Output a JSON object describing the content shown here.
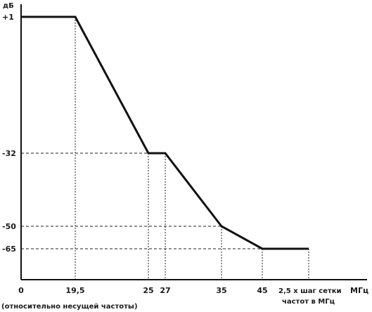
{
  "chart_data": {
    "type": "line",
    "ylabel": "дБ",
    "xlabel": "МГц",
    "x_note": "(относительно несущей частоты)",
    "x_end_label_line1": "2,5 x шаг сетки",
    "x_end_label_line2": "частот в МГц",
    "y_top_label": "+1",
    "series": [
      {
        "x": [
          0,
          19.5,
          25,
          27,
          35,
          45,
          55
        ],
        "y": [
          1,
          1,
          -32,
          -32,
          -50,
          -65,
          -65
        ]
      }
    ],
    "x_ticks": [
      "0",
      "19,5",
      "25",
      "27",
      "35",
      "45"
    ],
    "y_ticks": [
      "-32",
      "-50",
      "-65"
    ],
    "grid": "dashed guide lines at breakpoints",
    "legend": "none"
  }
}
